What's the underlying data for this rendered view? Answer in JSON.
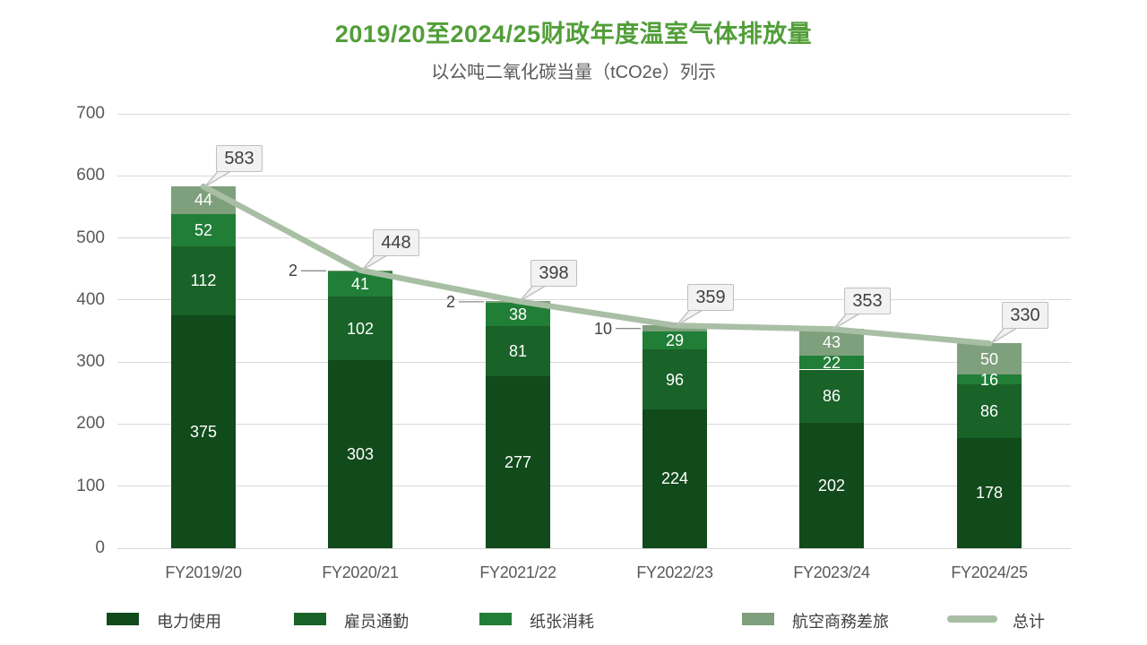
{
  "title": "2019/20至2024/25财政年度温室气体排放量",
  "subtitle": "以公吨二氧化碳当量（tCO2e）列示",
  "colors": {
    "title_green": "#529E38",
    "subtitle_gray": "#595959",
    "axis_text": "#595959",
    "gridline": "#D9D9D9",
    "callout_bg": "#F2F2F2",
    "callout_border": "#BFBFBF",
    "callout_text": "#404040",
    "leader_line": "#8C8C8C",
    "segment_label": "#FFFFFF"
  },
  "chart_data": {
    "type": "bar",
    "subtype": "stacked-column-with-total-line",
    "title": "2019/20至2024/25财政年度温室气体排放量",
    "subtitle": "以公吨二氧化碳当量（tCO2e）列示",
    "categories": [
      "FY2019/20",
      "FY2020/21",
      "FY2021/22",
      "FY2022/23",
      "FY2023/24",
      "FY2024/25"
    ],
    "series": [
      {
        "name": "电力使用",
        "color": "#114A1B",
        "values": [
          375,
          303,
          277,
          224,
          202,
          178
        ]
      },
      {
        "name": "雇员通勤",
        "color": "#196228",
        "values": [
          112,
          102,
          81,
          96,
          86,
          86
        ]
      },
      {
        "name": "纸张消耗",
        "color": "#217E37",
        "values": [
          52,
          41,
          38,
          29,
          22,
          16
        ]
      },
      {
        "name": "航空商務差旅",
        "color": "#7FA07C",
        "values": [
          44,
          2,
          2,
          10,
          43,
          50
        ]
      }
    ],
    "total_line": {
      "name": "总计",
      "color": "#A9BFA5",
      "values": [
        583,
        448,
        398,
        359,
        353,
        330
      ]
    },
    "ylim": [
      0,
      700
    ],
    "yticks": [
      0,
      100,
      200,
      300,
      400,
      500,
      600,
      700
    ],
    "xlabel": "",
    "ylabel": "",
    "grid": "horizontal",
    "legend_position": "bottom",
    "annotations": "totals shown in gray callout boxes above each column; tiny segments (2, 2, 10) labeled left of columns with leader lines"
  }
}
